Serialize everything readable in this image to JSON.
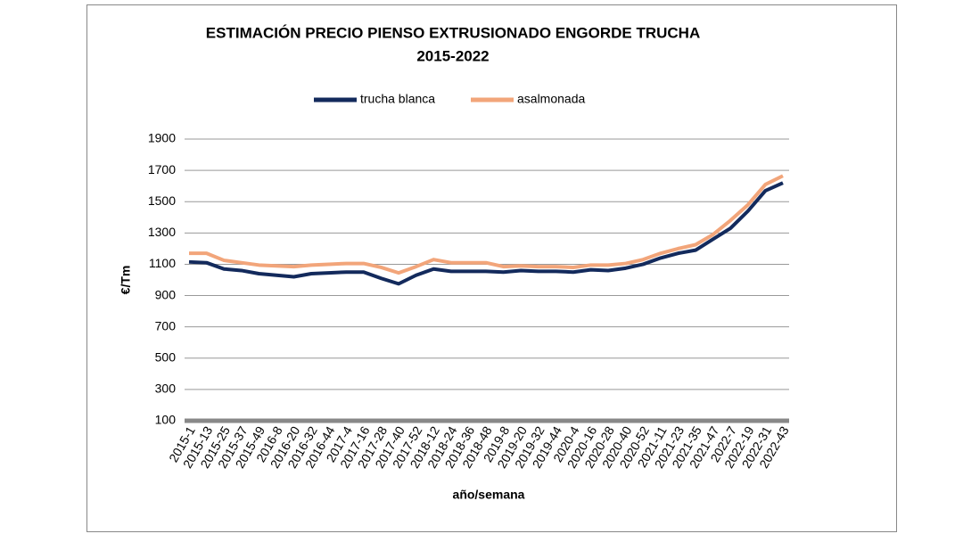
{
  "chart_data": {
    "type": "line",
    "title": "ESTIMACIÓN PRECIO PIENSO EXTRUSIONADO ENGORDE TRUCHA",
    "subtitle": "2015-2022",
    "x_label": "año/semana",
    "y_label": "€/Tm",
    "categories": [
      "2015-1",
      "2015-13",
      "2015-25",
      "2015-37",
      "2015-49",
      "2016-8",
      "2016-20",
      "2016-32",
      "2016-44",
      "2017-4",
      "2017-16",
      "2017-28",
      "2017-40",
      "2017-52",
      "2018-12",
      "2018-24",
      "2018-36",
      "2018-48",
      "2019-8",
      "2019-20",
      "2019-32",
      "2019-44",
      "2020-4",
      "2020-16",
      "2020-28",
      "2020-40",
      "2020-52",
      "2021-11",
      "2021-23",
      "2021-35",
      "2021-47",
      "2022-7",
      "2022-19",
      "2022-31",
      "2022-43"
    ],
    "series": [
      {
        "name": "trucha blanca",
        "color": "#132a5c",
        "values": [
          1115,
          1110,
          1070,
          1060,
          1040,
          1030,
          1020,
          1040,
          1045,
          1050,
          1050,
          1010,
          975,
          1030,
          1070,
          1055,
          1055,
          1055,
          1050,
          1060,
          1055,
          1055,
          1050,
          1065,
          1060,
          1075,
          1100,
          1140,
          1170,
          1190,
          1260,
          1330,
          1440,
          1570,
          1620
        ]
      },
      {
        "name": "asalmonada",
        "color": "#f2a57a",
        "values": [
          1170,
          1170,
          1125,
          1110,
          1095,
          1090,
          1085,
          1095,
          1100,
          1105,
          1105,
          1080,
          1045,
          1085,
          1130,
          1110,
          1110,
          1110,
          1085,
          1090,
          1085,
          1085,
          1080,
          1095,
          1095,
          1105,
          1130,
          1170,
          1200,
          1225,
          1290,
          1380,
          1480,
          1610,
          1665
        ]
      }
    ],
    "ylim": [
      100,
      1900
    ],
    "yticks": [
      100,
      300,
      500,
      700,
      900,
      1100,
      1300,
      1500,
      1700,
      1900
    ],
    "grid": true,
    "legend": "top"
  }
}
